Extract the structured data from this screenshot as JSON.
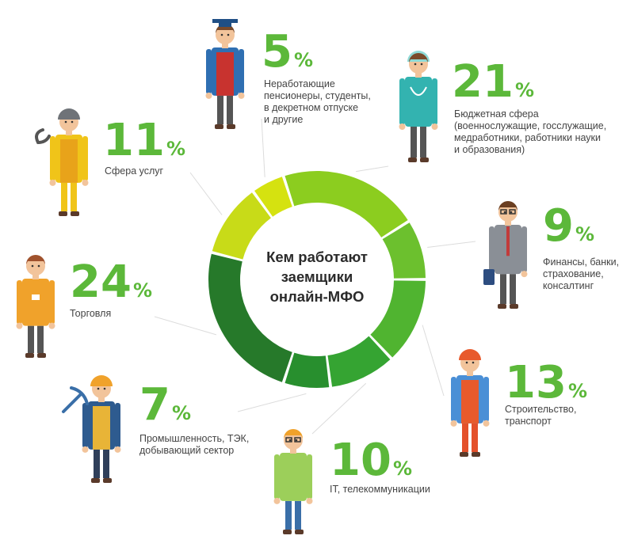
{
  "chart_data": {
    "type": "donut",
    "title_lines": [
      "Кем работают",
      "заемщики",
      "онлайн-МФО"
    ],
    "unit": "%",
    "categories": [
      {
        "value": 5,
        "lines": [
          "Неработающие",
          "пенсионеры, студенты,",
          "в декретном отпуске",
          "и другие"
        ],
        "color": "#d5e210"
      },
      {
        "value": 21,
        "lines": [
          "Бюджетная сфера",
          "(военнослужащие, госслужащие,",
          "медработники, работники науки",
          "и образования)"
        ],
        "color": "#8ccd1f"
      },
      {
        "value": 9,
        "lines": [
          "Финансы, банки,",
          "страхование,",
          "консалтинг"
        ],
        "color": "#6cc02e"
      },
      {
        "value": 13,
        "lines": [
          "Строительство,",
          "транспорт"
        ],
        "color": "#50b430"
      },
      {
        "value": 10,
        "lines": [
          "IT, телекоммуникации"
        ],
        "color": "#35a432"
      },
      {
        "value": 7,
        "lines": [
          "Промышленность, ТЭК,",
          "добывающий сектор"
        ],
        "color": "#288f2e"
      },
      {
        "value": 24,
        "lines": [
          "Торговля"
        ],
        "color": "#26792a"
      },
      {
        "value": 11,
        "lines": [
          "Сфера услуг"
        ],
        "color": "#c8db18"
      }
    ]
  },
  "icons": [
    "graduate-icon",
    "doctor-icon",
    "businessman-icon",
    "builder-icon",
    "it-specialist-icon",
    "miner-icon",
    "seller-icon",
    "mechanic-icon"
  ]
}
